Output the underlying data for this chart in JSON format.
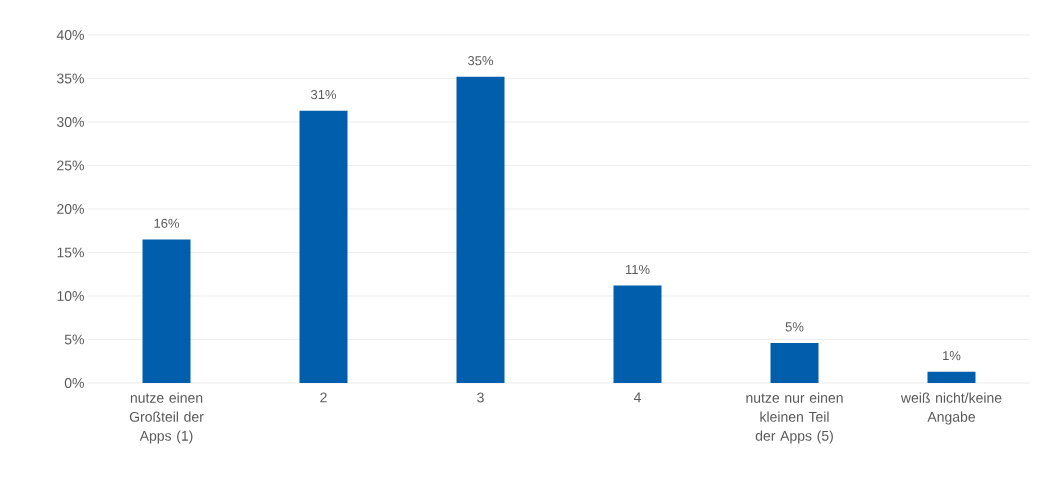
{
  "chart_data": {
    "type": "bar",
    "categories": [
      "nutze einen Großteil der Apps (1)",
      "2",
      "3",
      "4",
      "nutze nur einen kleinen Teil der Apps (5)",
      "weiß nicht/keine Angabe"
    ],
    "values": [
      16.5,
      31.3,
      35.2,
      11.2,
      4.6,
      1.3
    ],
    "value_labels": [
      "16%",
      "31%",
      "35%",
      "11%",
      "5%",
      "1%"
    ],
    "color": "#005eac",
    "ylim": [
      0,
      40
    ],
    "yticks": [
      {
        "value": 0,
        "label": "0%"
      },
      {
        "value": 5,
        "label": "5%"
      },
      {
        "value": 10,
        "label": "10%"
      },
      {
        "value": 15,
        "label": "15%"
      },
      {
        "value": 20,
        "label": "20%"
      },
      {
        "value": 25,
        "label": "25%"
      },
      {
        "value": 30,
        "label": "30%"
      },
      {
        "value": 35,
        "label": "35%"
      },
      {
        "value": 40,
        "label": "40%"
      }
    ],
    "grid": "y"
  }
}
